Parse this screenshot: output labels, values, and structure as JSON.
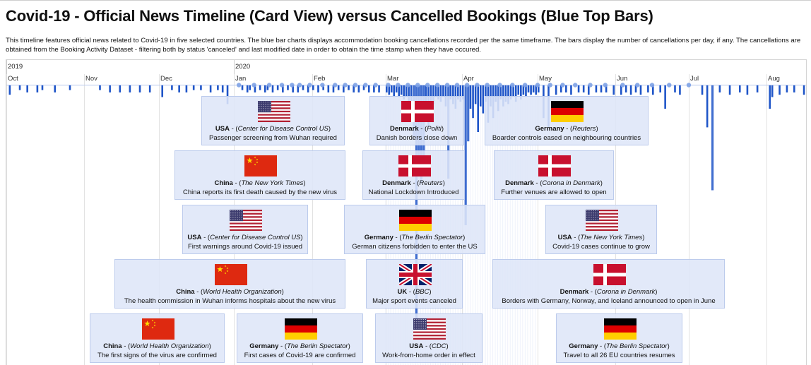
{
  "title": "Covid-19 - Official News Timeline (Card View) versus Cancelled Bookings (Blue Top Bars)",
  "description": "This timeline features official news related to Covid-19 in five selected countries. The blue bar charts displays accommodation booking cancellations recorded per the same timeframe. The bars display the number of cancellations per day, if any. The cancellations are obtained from the Booking Activity Dataset - filtering both by status 'canceled' and last modified date in order to obtain the time stamp when they have occured.",
  "colors": {
    "bar": "#1f55c8",
    "dot": "#7ea2e6",
    "card_bg": "#dee6f8",
    "card_border": "#bccbec"
  },
  "timeline": {
    "years": [
      {
        "label": "2019",
        "month_index": 0
      },
      {
        "label": "2020",
        "month_index": 3
      }
    ],
    "months": [
      "Oct",
      "Nov",
      "Dec",
      "Jan",
      "Feb",
      "Mar",
      "Apr",
      "May",
      "Jun",
      "Jul",
      "Aug"
    ]
  },
  "chart_data": {
    "type": "bar",
    "title": "Cancelled Bookings (Blue Top Bars)",
    "x_unit": "day",
    "x_range": [
      "2019-10-01",
      "2020-08-31"
    ],
    "y_unit": "cancellations per day (relative)",
    "series": [
      {
        "values": [
          [
            "2019-10-02",
            4
          ],
          [
            "2019-10-06",
            2
          ],
          [
            "2019-10-09",
            3
          ],
          [
            "2019-10-13",
            3
          ],
          [
            "2019-10-15",
            2
          ],
          [
            "2019-10-20",
            3
          ],
          [
            "2019-10-26",
            2
          ],
          [
            "2019-11-07",
            2
          ],
          [
            "2019-11-11",
            3
          ],
          [
            "2019-11-15",
            3
          ],
          [
            "2019-11-19",
            3
          ],
          [
            "2019-11-23",
            3
          ],
          [
            "2019-11-27",
            3
          ],
          [
            "2019-12-02",
            5
          ],
          [
            "2019-12-06",
            2
          ],
          [
            "2019-12-09",
            3
          ],
          [
            "2019-12-12",
            3
          ],
          [
            "2019-12-15",
            2
          ],
          [
            "2019-12-18",
            2
          ],
          [
            "2019-12-22",
            3
          ],
          [
            "2019-12-25",
            2
          ],
          [
            "2019-12-27",
            3
          ],
          [
            "2019-12-29",
            8
          ],
          [
            "2020-01-04",
            2
          ],
          [
            "2020-01-06",
            3
          ],
          [
            "2020-01-07",
            2
          ],
          [
            "2020-01-09",
            3
          ],
          [
            "2020-01-11",
            2
          ],
          [
            "2020-01-13",
            3
          ],
          [
            "2020-01-14",
            2
          ],
          [
            "2020-01-16",
            3
          ],
          [
            "2020-01-18",
            2
          ],
          [
            "2020-01-20",
            3
          ],
          [
            "2020-01-22",
            2
          ],
          [
            "2020-01-24",
            3
          ],
          [
            "2020-01-26",
            3
          ],
          [
            "2020-01-28",
            2
          ],
          [
            "2020-01-30",
            3
          ],
          [
            "2020-02-01",
            2
          ],
          [
            "2020-02-03",
            3
          ],
          [
            "2020-02-05",
            2
          ],
          [
            "2020-02-07",
            3
          ],
          [
            "2020-02-09",
            3
          ],
          [
            "2020-02-11",
            2
          ],
          [
            "2020-02-13",
            3
          ],
          [
            "2020-02-15",
            2
          ],
          [
            "2020-02-17",
            3
          ],
          [
            "2020-02-19",
            3
          ],
          [
            "2020-02-21",
            2
          ],
          [
            "2020-02-23",
            3
          ],
          [
            "2020-02-25",
            3
          ],
          [
            "2020-02-27",
            3
          ],
          [
            "2020-03-01",
            3
          ],
          [
            "2020-03-02",
            4
          ],
          [
            "2020-03-03",
            3
          ],
          [
            "2020-03-04",
            5
          ],
          [
            "2020-03-05",
            3
          ],
          [
            "2020-03-06",
            5
          ],
          [
            "2020-03-07",
            4
          ],
          [
            "2020-03-08",
            6
          ],
          [
            "2020-03-09",
            5
          ],
          [
            "2020-03-10",
            7
          ],
          [
            "2020-03-11",
            9
          ],
          [
            "2020-03-12",
            22
          ],
          [
            "2020-03-13",
            100
          ],
          [
            "2020-03-14",
            30
          ],
          [
            "2020-03-15",
            42
          ],
          [
            "2020-03-16",
            38
          ],
          [
            "2020-03-17",
            14
          ],
          [
            "2020-03-18",
            18
          ],
          [
            "2020-03-19",
            12
          ],
          [
            "2020-03-20",
            8
          ],
          [
            "2020-03-21",
            5
          ],
          [
            "2020-03-22",
            6
          ],
          [
            "2020-03-23",
            7
          ],
          [
            "2020-03-24",
            5
          ],
          [
            "2020-03-25",
            9
          ],
          [
            "2020-03-26",
            40
          ],
          [
            "2020-03-27",
            6
          ],
          [
            "2020-03-28",
            8
          ],
          [
            "2020-03-29",
            10
          ],
          [
            "2020-03-30",
            6
          ],
          [
            "2020-03-31",
            7
          ],
          [
            "2020-04-01",
            6
          ],
          [
            "2020-04-02",
            60
          ],
          [
            "2020-04-03",
            24
          ],
          [
            "2020-04-04",
            10
          ],
          [
            "2020-04-05",
            14
          ],
          [
            "2020-04-06",
            8
          ],
          [
            "2020-04-07",
            20
          ],
          [
            "2020-04-08",
            9
          ],
          [
            "2020-04-09",
            12
          ],
          [
            "2020-04-10",
            7
          ],
          [
            "2020-04-11",
            16
          ],
          [
            "2020-04-12",
            9
          ],
          [
            "2020-04-13",
            14
          ],
          [
            "2020-04-14",
            7
          ],
          [
            "2020-04-15",
            11
          ],
          [
            "2020-04-16",
            6
          ],
          [
            "2020-04-17",
            9
          ],
          [
            "2020-04-18",
            7
          ],
          [
            "2020-04-19",
            8
          ],
          [
            "2020-04-20",
            6
          ],
          [
            "2020-04-21",
            5
          ],
          [
            "2020-04-22",
            7
          ],
          [
            "2020-04-23",
            4
          ],
          [
            "2020-04-24",
            6
          ],
          [
            "2020-04-25",
            4
          ],
          [
            "2020-04-26",
            5
          ],
          [
            "2020-04-27",
            3
          ],
          [
            "2020-04-28",
            4
          ],
          [
            "2020-04-29",
            3
          ],
          [
            "2020-04-30",
            4
          ],
          [
            "2020-05-01",
            3
          ],
          [
            "2020-05-03",
            14
          ],
          [
            "2020-05-05",
            18
          ],
          [
            "2020-05-08",
            4
          ],
          [
            "2020-05-10",
            3
          ],
          [
            "2020-05-12",
            3
          ],
          [
            "2020-05-14",
            4
          ],
          [
            "2020-05-17",
            3
          ],
          [
            "2020-05-19",
            3
          ],
          [
            "2020-05-21",
            4
          ],
          [
            "2020-05-24",
            3
          ],
          [
            "2020-05-26",
            3
          ],
          [
            "2020-05-28",
            3
          ],
          [
            "2020-05-31",
            4
          ],
          [
            "2020-06-03",
            4
          ],
          [
            "2020-06-05",
            3
          ],
          [
            "2020-06-07",
            4
          ],
          [
            "2020-06-09",
            3
          ],
          [
            "2020-06-11",
            4
          ],
          [
            "2020-06-14",
            3
          ],
          [
            "2020-06-16",
            4
          ],
          [
            "2020-06-19",
            3
          ],
          [
            "2020-06-21",
            10
          ],
          [
            "2020-06-25",
            3
          ],
          [
            "2020-06-27",
            4
          ],
          [
            "2020-07-06",
            4
          ],
          [
            "2020-07-08",
            18
          ],
          [
            "2020-07-10",
            45
          ],
          [
            "2020-07-13",
            3
          ],
          [
            "2020-07-17",
            4
          ],
          [
            "2020-07-21",
            3
          ],
          [
            "2020-07-24",
            4
          ],
          [
            "2020-07-28",
            3
          ],
          [
            "2020-08-02",
            10
          ],
          [
            "2020-08-03",
            5
          ],
          [
            "2020-08-06",
            4
          ],
          [
            "2020-08-09",
            3
          ],
          [
            "2020-08-12",
            3
          ],
          [
            "2020-08-16",
            4
          ],
          [
            "2020-08-19",
            3
          ],
          [
            "2020-08-23",
            4
          ],
          [
            "2020-08-26",
            3
          ],
          [
            "2020-08-30",
            3
          ]
        ]
      }
    ],
    "news_markers": [
      "2020-01-03",
      "2020-01-09",
      "2020-01-15",
      "2020-01-20",
      "2020-01-24",
      "2020-01-27",
      "2020-01-31",
      "2020-02-05",
      "2020-02-10",
      "2020-02-14",
      "2020-02-18",
      "2020-02-22",
      "2020-02-26",
      "2020-03-02",
      "2020-03-06",
      "2020-03-10",
      "2020-03-14",
      "2020-03-18",
      "2020-03-22",
      "2020-03-26",
      "2020-03-30",
      "2020-04-03",
      "2020-04-07",
      "2020-04-11",
      "2020-04-16",
      "2020-04-21",
      "2020-04-26",
      "2020-05-01",
      "2020-05-06",
      "2020-05-11",
      "2020-05-16",
      "2020-05-22",
      "2020-05-28",
      "2020-06-04",
      "2020-06-10",
      "2020-06-16",
      "2020-06-23",
      "2020-07-01"
    ]
  },
  "cards": [
    {
      "id": "c1",
      "country": "USA",
      "flag": "usa",
      "source": "Center for Disease Control US",
      "text": "Passenger screening from Wuhan required",
      "date": "2020-01-17"
    },
    {
      "id": "c2",
      "country": "Denmark",
      "flag": "dk",
      "source": "Politi",
      "text": "Danish borders close down",
      "date": "2020-03-13"
    },
    {
      "id": "c3",
      "country": "Germany",
      "flag": "de",
      "source": "Reuters",
      "text": "Boarder controls eased on neighbouring countries",
      "date": "2020-05-13"
    },
    {
      "id": "c4",
      "country": "China",
      "flag": "cn",
      "source": "The New York Times",
      "text": "China reports its first death caused by the new virus",
      "date": "2020-01-11"
    },
    {
      "id": "c5",
      "country": "Denmark",
      "flag": "dk",
      "source": "Reuters",
      "text": "National Lockdown Introduced",
      "date": "2020-03-11"
    },
    {
      "id": "c6",
      "country": "Denmark",
      "flag": "dk",
      "source": "Corona in Denmark",
      "text": "Further venues are allowed to open",
      "date": "2020-05-08"
    },
    {
      "id": "c7",
      "country": "USA",
      "flag": "usa",
      "source": "Center for Disease Control US",
      "text": "First warnings around Covid-19 issued",
      "date": "2020-01-08"
    },
    {
      "id": "c8",
      "country": "Germany",
      "flag": "de",
      "source": "The Berlin Spectator",
      "text": "German citizens forbidden to enter the US",
      "date": "2020-03-14"
    },
    {
      "id": "c9",
      "country": "USA",
      "flag": "usa",
      "source": "The New York Times",
      "text": "Covid-19 cases continue to grow",
      "date": "2020-05-25"
    },
    {
      "id": "c10",
      "country": "China",
      "flag": "cn",
      "source": "World Health Organization",
      "text": "The health commission in Wuhan informs hospitals about the new virus",
      "date": "2019-12-30"
    },
    {
      "id": "c11",
      "country": "UK",
      "flag": "uk",
      "source": "BBC",
      "text": "Major sport events canceled",
      "date": "2020-03-13"
    },
    {
      "id": "c12",
      "country": "Denmark",
      "flag": "dk",
      "source": "Corona in Denmark",
      "text": "Borders with Germany, Norway, and Iceland announced to open in June",
      "date": "2020-05-29"
    },
    {
      "id": "c13",
      "country": "China",
      "flag": "cn",
      "source": "World Health Organization",
      "text": "The first signs of the virus are confirmed",
      "date": "2019-12-08"
    },
    {
      "id": "c14",
      "country": "Germany",
      "flag": "de",
      "source": "The Berlin Spectator",
      "text": "First cases of Covid-19 are confirmed",
      "date": "2020-01-27"
    },
    {
      "id": "c15",
      "country": "USA",
      "flag": "usa",
      "source": "CDC",
      "text": "Work-from-home order in effect",
      "date": "2020-03-16"
    },
    {
      "id": "c16",
      "country": "Germany",
      "flag": "de",
      "source": "The Berlin Spectator",
      "text": "Travel to all 26 EU countries resumes",
      "date": "2020-06-15"
    }
  ]
}
